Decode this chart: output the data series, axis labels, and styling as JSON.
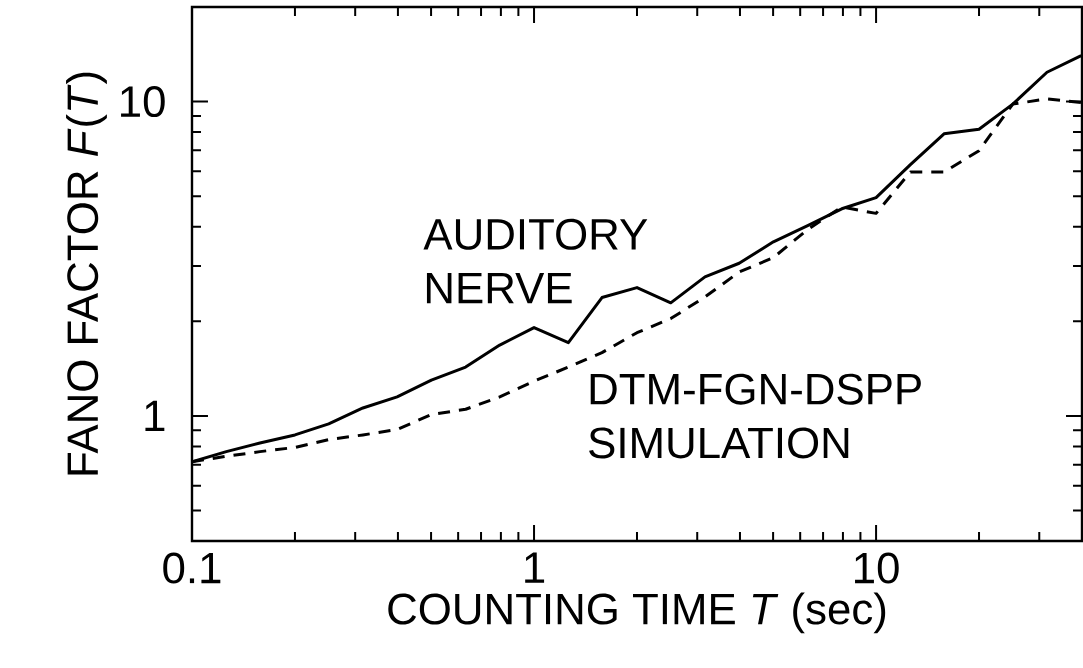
{
  "chart_data": {
    "type": "line",
    "xlabel": "COUNTING TIME *T* (sec)",
    "ylabel": "FANO FACTOR *F*(*T*)",
    "log": "xy",
    "xlim": [
      0.1,
      40
    ],
    "ylim": [
      0.4,
      20
    ],
    "xticks": [
      0.1,
      1,
      10
    ],
    "yticks": [
      1,
      10
    ],
    "x": [
      0.1,
      0.126,
      0.158,
      0.2,
      0.251,
      0.316,
      0.398,
      0.501,
      0.631,
      0.794,
      1,
      1.26,
      1.58,
      2,
      2.51,
      3.16,
      3.98,
      5.01,
      6.31,
      7.94,
      10,
      12.6,
      15.8,
      20,
      25.1,
      31.6,
      39.8
    ],
    "series": [
      {
        "name": "AUDITORY NERVE",
        "color": "#000000",
        "line_style": "solid",
        "values": [
          0.715,
          0.77,
          0.82,
          0.87,
          0.943,
          1.06,
          1.15,
          1.3,
          1.43,
          1.68,
          1.91,
          1.71,
          2.38,
          2.56,
          2.29,
          2.77,
          3.06,
          3.58,
          4.03,
          4.56,
          4.95,
          6.3,
          7.9,
          8.17,
          9.82,
          12.4,
          14.0
        ]
      },
      {
        "name": "DTM-FGN-DSPP SIMULATION",
        "color": "#000000",
        "line_style": "dashed",
        "values": [
          0.715,
          0.744,
          0.77,
          0.794,
          0.841,
          0.87,
          0.905,
          1.01,
          1.05,
          1.15,
          1.29,
          1.43,
          1.59,
          1.84,
          2.04,
          2.39,
          2.87,
          3.19,
          3.92,
          4.62,
          4.41,
          5.97,
          5.97,
          6.98,
          9.82,
          10.2,
          9.94
        ]
      }
    ]
  }
}
